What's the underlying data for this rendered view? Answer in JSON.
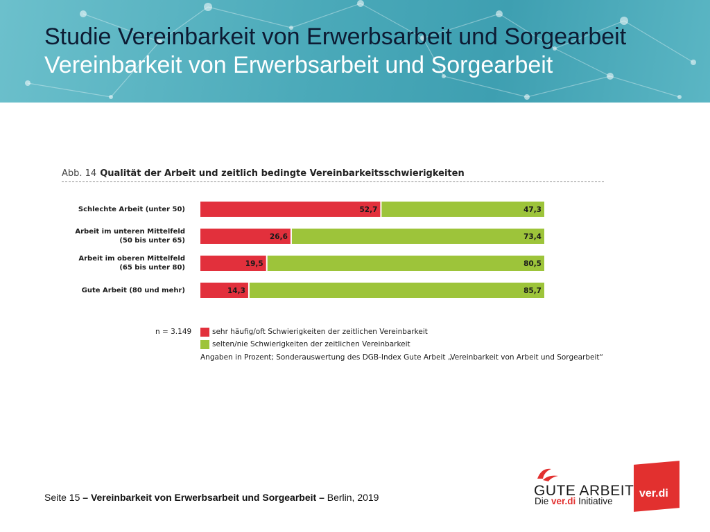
{
  "header": {
    "title_line1": "Studie Vereinbarkeit von Erwerbsarbeit und Sorgearbeit",
    "title_line2": "Vereinbarkeit von Erwerbsarbeit und Sorgearbeit"
  },
  "figure": {
    "label": "Abb. 14",
    "title": "Qualität der Arbeit und zeitlich bedingte Vereinbarkeitsschwierigkeiten"
  },
  "chart_data": {
    "type": "bar",
    "orientation": "horizontal",
    "stacked": true,
    "title": "Qualität der Arbeit und zeitlich bedingte Vereinbarkeitsschwierigkeiten",
    "categories": [
      [
        "Schlechte Arbeit (unter 50)"
      ],
      [
        "Arbeit im unteren Mittelfeld",
        "(50 bis unter 65)"
      ],
      [
        "Arbeit im oberen Mittelfeld",
        "(65 bis unter 80)"
      ],
      [
        "Gute Arbeit (80 und mehr)"
      ]
    ],
    "series": [
      {
        "name": "sehr häufig/oft Schwierigkeiten der zeitlichen Vereinbarkeit",
        "color": "#e2303c",
        "values": [
          52.7,
          26.6,
          19.5,
          14.3
        ],
        "labels": [
          "52,7",
          "26,6",
          "19,5",
          "14,3"
        ]
      },
      {
        "name": "selten/nie Schwierigkeiten der zeitlichen Vereinbarkeit",
        "color": "#9dc43a",
        "values": [
          47.3,
          73.4,
          80.5,
          85.7
        ],
        "labels": [
          "47,3",
          "73,4",
          "80,5",
          "85,7"
        ]
      }
    ],
    "xlim": [
      0,
      100
    ],
    "unit": "Prozent",
    "sample_size": "n = 3.149",
    "note": "Angaben in Prozent; Sonderauswertung des DGB-Index Gute Arbeit „Vereinbarkeit von Arbeit und Sorgearbeit“"
  },
  "footer": {
    "page": "Seite 15",
    "dash1": "–",
    "topic": "Vereinbarkeit von Erwerbsarbeit und Sorgearbeit",
    "dash2": "–",
    "place_year": "Berlin, 2019"
  },
  "logos": {
    "gute_arbeit": "GUTE ARBEIT",
    "gute_sub_prefix": "Die",
    "gute_sub_brand": "ver.di",
    "gute_sub_suffix": "Initiative",
    "verdi": "ver.di"
  },
  "colors": {
    "header_bg": "#4aa9b9",
    "red": "#e2303c",
    "green": "#9dc43a"
  }
}
